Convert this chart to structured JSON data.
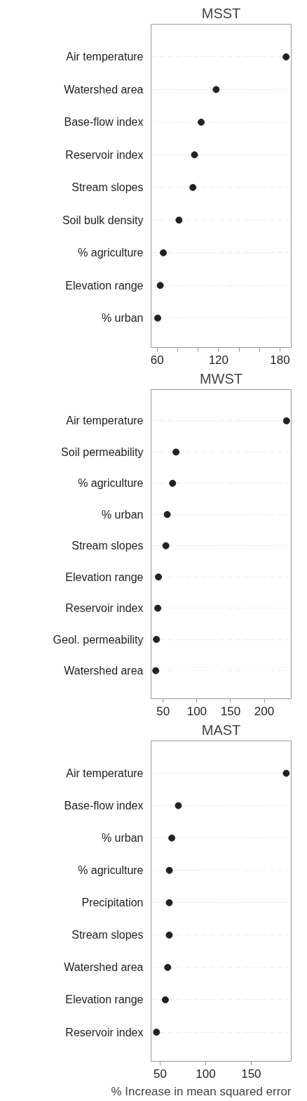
{
  "chart_data": [
    {
      "type": "scatter",
      "orientation": "horizontal",
      "title": "MSST",
      "marker": "circle",
      "grid": "y",
      "color": "#222222",
      "categories": [
        "Air temperature",
        "Watershed area",
        "Base-flow index",
        "Reservoir index",
        "Stream slopes",
        "Soil bulk density",
        "% agriculture",
        "Elevation range",
        "% urban"
      ],
      "values": [
        186,
        117.6,
        103,
        96.5,
        94.9,
        81.3,
        66,
        63,
        60.5
      ],
      "xlim": [
        54,
        191
      ],
      "xticks": [
        60,
        {
          "value": 80,
          "label": null
        },
        {
          "value": 100,
          "label": null
        },
        120,
        {
          "value": 140,
          "label": null
        },
        {
          "value": 160,
          "label": null
        },
        180
      ]
    },
    {
      "type": "scatter",
      "orientation": "horizontal",
      "title": "MWST",
      "marker": "circle",
      "grid": "y",
      "color": "#222222",
      "categories": [
        "Air temperature",
        "Soil permeability",
        "% agriculture",
        "% urban",
        "Stream slopes",
        "Elevation range",
        "Reservoir index",
        "Geol. permeability",
        "Watershed area"
      ],
      "values": [
        233,
        69,
        64,
        56,
        54,
        43,
        42,
        40,
        39
      ],
      "xlim": [
        32,
        240
      ],
      "xticks": [
        50,
        100,
        150,
        200
      ]
    },
    {
      "type": "scatter",
      "orientation": "horizontal",
      "title": "MAST",
      "marker": "circle",
      "grid": "y",
      "color": "#222222",
      "xlabel": "% Increase in mean squared error",
      "categories": [
        "Air temperature",
        "Base-flow index",
        "% urban",
        "% agriculture",
        "Precipitation",
        "Stream slopes",
        "Watershed area",
        "Elevation range",
        "Reservoir index"
      ],
      "values": [
        188.5,
        70,
        62.8,
        60.1,
        60,
        60,
        58.3,
        55.7,
        46
      ],
      "xlim": [
        40,
        194
      ],
      "xticks": [
        50,
        100,
        150
      ]
    }
  ]
}
